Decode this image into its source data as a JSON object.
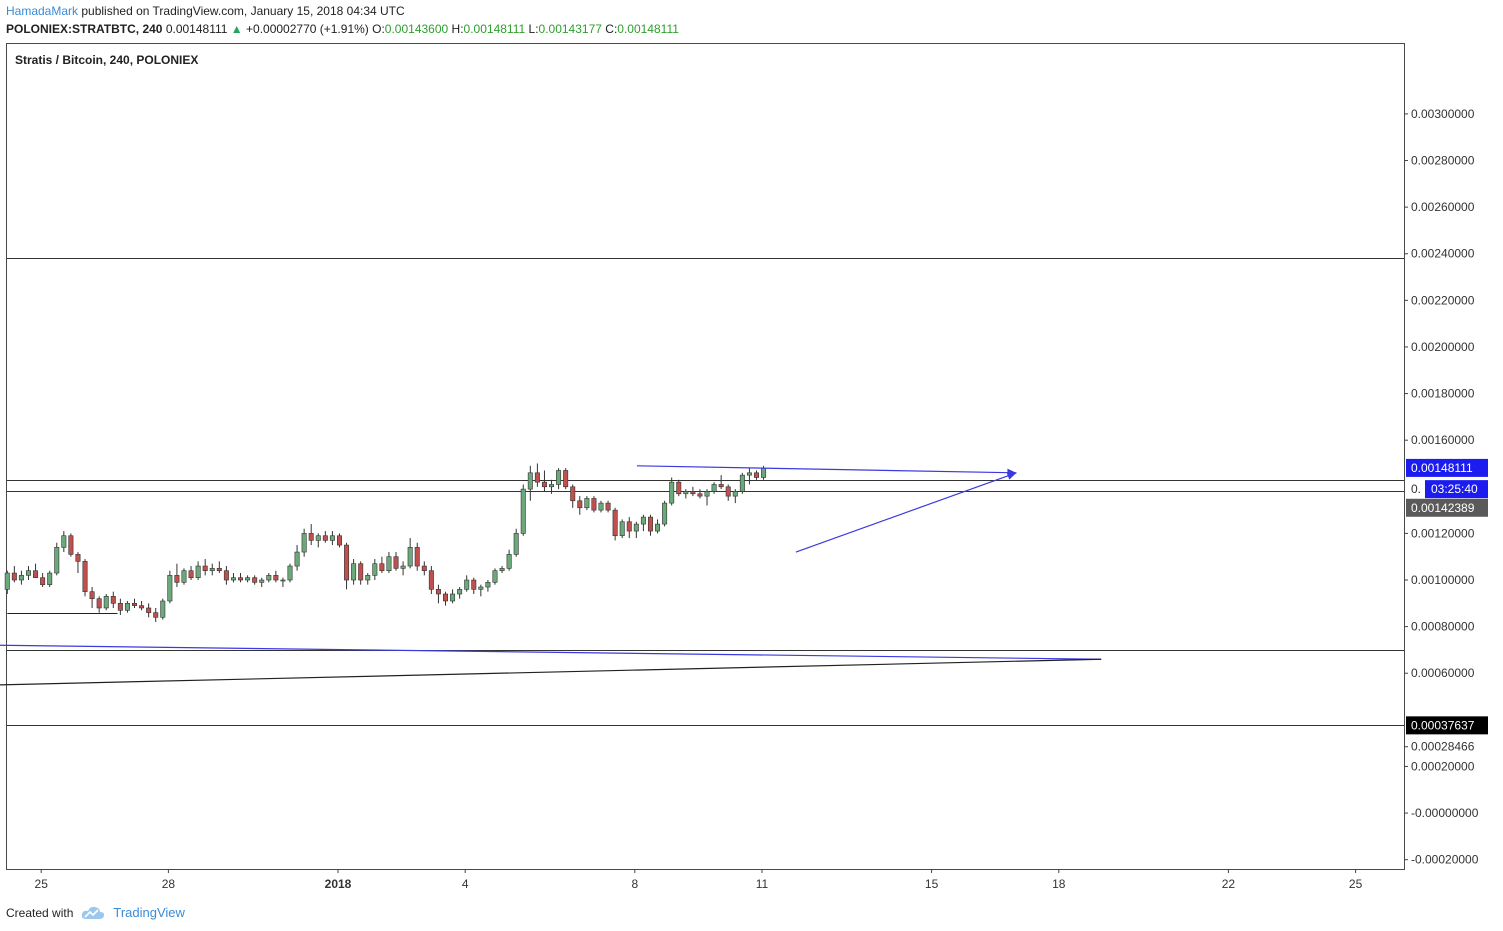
{
  "header": {
    "publisher": "HamadaMark",
    "published_text": " published on TradingView.com, January 15, 2018 04:34 UTC",
    "symbol": "POLONIEX:STRATBTC, 240",
    "last": "0.00148111",
    "change_arrow": "▲",
    "change": "+0.00002770 (+1.91%)",
    "o_label": "O:",
    "o": "0.00143600",
    "h_label": "H:",
    "h": "0.00148111",
    "l_label": "L:",
    "l": "0.00143177",
    "c_label": "C:",
    "c": "0.00148111"
  },
  "footer": {
    "created_with": "Created with",
    "brand": "TradingView",
    "logo_icon": "tradingview-cloud-icon"
  },
  "colors": {
    "up": "#6aa97a",
    "down": "#c0504d",
    "trend": "#3a3ae0",
    "price_badge": "#1c1cf0",
    "dark_badge": "#5a5a5a",
    "black_badge": "#000000"
  },
  "chart_data": {
    "type": "candlestick",
    "title": "Stratis / Bitcoin, 240, POLONIEX",
    "ylim": [
      -0.00024,
      0.0033
    ],
    "y_ticks": [
      "0.00300000",
      "0.00280000",
      "0.00260000",
      "0.00240000",
      "0.00220000",
      "0.00200000",
      "0.00180000",
      "0.00160000",
      "0.00120000",
      "0.00100000",
      "0.00080000",
      "0.00060000",
      "0.00028466",
      "0.00020000",
      "-0.00000000",
      "-0.00020000"
    ],
    "y_tick_values": [
      0.003,
      0.0028,
      0.0026,
      0.0024,
      0.0022,
      0.002,
      0.0018,
      0.0016,
      0.0012,
      0.001,
      0.0008,
      0.0006,
      0.00028466,
      0.0002,
      0.0,
      -0.0002
    ],
    "x_ticks": [
      {
        "label": "25",
        "day": -7,
        "bold": false
      },
      {
        "label": "28",
        "day": -4,
        "bold": false
      },
      {
        "label": "2018",
        "day": 0,
        "bold": true
      },
      {
        "label": "4",
        "day": 3,
        "bold": false
      },
      {
        "label": "8",
        "day": 7,
        "bold": false
      },
      {
        "label": "11",
        "day": 10,
        "bold": false
      },
      {
        "label": "15",
        "day": 14,
        "bold": false
      },
      {
        "label": "18",
        "day": 17,
        "bold": false
      },
      {
        "label": "22",
        "day": 21,
        "bold": false
      },
      {
        "label": "25",
        "day": 24,
        "bold": false
      }
    ],
    "price_badges": [
      {
        "label": "0.00148111",
        "value": 0.00148111,
        "style": "blue"
      },
      {
        "label": "03:25:40",
        "value": 0.00139,
        "style": "blue-small",
        "prefix": "0."
      },
      {
        "label": "0.00142389",
        "value": 0.00131,
        "style": "gray"
      },
      {
        "label": "0.00037637",
        "value": 0.00037637,
        "style": "black"
      }
    ],
    "horizontal_lines": [
      0.00238,
      0.00143,
      0.00138,
      0.0007,
      0.00038
    ],
    "short_lines": [
      {
        "value": 0.00086,
        "day_from": -7.8,
        "day_to": -5.2
      }
    ],
    "trend_lines": [
      {
        "from": [
          7.05,
          0.00149
        ],
        "to": [
          13.95,
          0.00146
        ],
        "color": "trend",
        "arrow": true,
        "extend_to": [
          16.0,
          0.00146
        ]
      },
      {
        "from": [
          10.8,
          0.00112
        ],
        "to": [
          16.0,
          0.00146
        ],
        "color": "trend",
        "arrow": true
      },
      {
        "from": [
          -8.0,
          0.00072
        ],
        "to": [
          18.0,
          0.00066
        ],
        "color": "trend",
        "arrow": false
      },
      {
        "from": [
          -8.0,
          0.00055
        ],
        "to": [
          18.0,
          0.00066
        ],
        "color": "black",
        "arrow": false
      }
    ],
    "candles_start_day": -7.8,
    "candles_step_days": 0.1667,
    "ohlc": [
      [
        0.00096,
        0.00104,
        0.00094,
        0.00103
      ],
      [
        0.00103,
        0.00106,
        0.00099,
        0.001
      ],
      [
        0.001,
        0.00104,
        0.00098,
        0.00102
      ],
      [
        0.00102,
        0.00106,
        0.001,
        0.00104
      ],
      [
        0.00104,
        0.00107,
        0.00101,
        0.00101
      ],
      [
        0.00101,
        0.00103,
        0.00097,
        0.00098
      ],
      [
        0.00098,
        0.00104,
        0.00097,
        0.00103
      ],
      [
        0.00103,
        0.00116,
        0.00102,
        0.00114
      ],
      [
        0.00114,
        0.00121,
        0.00112,
        0.00119
      ],
      [
        0.00119,
        0.0012,
        0.0011,
        0.00111
      ],
      [
        0.00111,
        0.00112,
        0.00103,
        0.00108
      ],
      [
        0.00108,
        0.00109,
        0.00093,
        0.00095
      ],
      [
        0.00095,
        0.00097,
        0.00088,
        0.00092
      ],
      [
        0.00092,
        0.00093,
        0.00086,
        0.00088
      ],
      [
        0.00088,
        0.00094,
        0.00087,
        0.00093
      ],
      [
        0.00093,
        0.00095,
        0.00088,
        0.0009
      ],
      [
        0.0009,
        0.00092,
        0.00085,
        0.00087
      ],
      [
        0.00087,
        0.00091,
        0.00086,
        0.0009
      ],
      [
        0.0009,
        0.00092,
        0.00088,
        0.00089
      ],
      [
        0.00089,
        0.00091,
        0.00087,
        0.00088
      ],
      [
        0.00088,
        0.0009,
        0.00084,
        0.00086
      ],
      [
        0.00086,
        0.00088,
        0.00082,
        0.00084
      ],
      [
        0.00084,
        0.00092,
        0.00083,
        0.00091
      ],
      [
        0.00091,
        0.00104,
        0.0009,
        0.00102
      ],
      [
        0.00102,
        0.00107,
        0.00097,
        0.00099
      ],
      [
        0.00099,
        0.00105,
        0.00098,
        0.00104
      ],
      [
        0.00104,
        0.00106,
        0.001,
        0.00101
      ],
      [
        0.00101,
        0.00108,
        0.001,
        0.00106
      ],
      [
        0.00106,
        0.00109,
        0.00102,
        0.00104
      ],
      [
        0.00104,
        0.00107,
        0.00102,
        0.00105
      ],
      [
        0.00105,
        0.00108,
        0.00103,
        0.00104
      ],
      [
        0.00104,
        0.00106,
        0.00098,
        0.001
      ],
      [
        0.001,
        0.00103,
        0.00099,
        0.00101
      ],
      [
        0.00101,
        0.00103,
        0.00099,
        0.001
      ],
      [
        0.001,
        0.00102,
        0.00099,
        0.00101
      ],
      [
        0.00101,
        0.00102,
        0.00098,
        0.00099
      ],
      [
        0.00099,
        0.00101,
        0.00097,
        0.001
      ],
      [
        0.001,
        0.00103,
        0.00099,
        0.00102
      ],
      [
        0.00102,
        0.00104,
        0.00099,
        0.001
      ],
      [
        0.001,
        0.00101,
        0.00097,
        0.001
      ],
      [
        0.001,
        0.00107,
        0.00099,
        0.00106
      ],
      [
        0.00106,
        0.00115,
        0.00104,
        0.00112
      ],
      [
        0.00112,
        0.00122,
        0.0011,
        0.0012
      ],
      [
        0.0012,
        0.00124,
        0.00115,
        0.00117
      ],
      [
        0.00117,
        0.0012,
        0.00114,
        0.00119
      ],
      [
        0.00119,
        0.00121,
        0.00116,
        0.00117
      ],
      [
        0.00117,
        0.00121,
        0.00115,
        0.00119
      ],
      [
        0.00119,
        0.0012,
        0.00114,
        0.00115
      ],
      [
        0.00115,
        0.00116,
        0.00096,
        0.001
      ],
      [
        0.001,
        0.00109,
        0.00098,
        0.00107
      ],
      [
        0.00107,
        0.00108,
        0.00098,
        0.001
      ],
      [
        0.001,
        0.00103,
        0.00098,
        0.00102
      ],
      [
        0.00102,
        0.00109,
        0.001,
        0.00107
      ],
      [
        0.00107,
        0.0011,
        0.00103,
        0.00104
      ],
      [
        0.00104,
        0.00112,
        0.00103,
        0.0011
      ],
      [
        0.0011,
        0.00112,
        0.00104,
        0.00105
      ],
      [
        0.00105,
        0.00108,
        0.00102,
        0.00106
      ],
      [
        0.00106,
        0.00118,
        0.00105,
        0.00114
      ],
      [
        0.00114,
        0.00116,
        0.00104,
        0.00106
      ],
      [
        0.00106,
        0.00108,
        0.00102,
        0.00104
      ],
      [
        0.00104,
        0.00106,
        0.00094,
        0.00096
      ],
      [
        0.00096,
        0.00098,
        0.0009,
        0.00094
      ],
      [
        0.00094,
        0.00095,
        0.00089,
        0.00091
      ],
      [
        0.00091,
        0.00096,
        0.0009,
        0.00094
      ],
      [
        0.00094,
        0.00097,
        0.00092,
        0.00096
      ],
      [
        0.00096,
        0.00102,
        0.00095,
        0.001
      ],
      [
        0.001,
        0.00101,
        0.00094,
        0.00096
      ],
      [
        0.00096,
        0.00098,
        0.00093,
        0.00097
      ],
      [
        0.00097,
        0.001,
        0.00095,
        0.00099
      ],
      [
        0.00099,
        0.00105,
        0.00098,
        0.00104
      ],
      [
        0.00104,
        0.00106,
        0.00103,
        0.00105
      ],
      [
        0.00105,
        0.00113,
        0.00104,
        0.00111
      ],
      [
        0.00111,
        0.00122,
        0.0011,
        0.0012
      ],
      [
        0.0012,
        0.00141,
        0.00119,
        0.00139
      ],
      [
        0.00139,
        0.00149,
        0.00134,
        0.00146
      ],
      [
        0.00146,
        0.0015,
        0.0014,
        0.00142
      ],
      [
        0.00142,
        0.00147,
        0.00138,
        0.0014
      ],
      [
        0.0014,
        0.00143,
        0.00137,
        0.00141
      ],
      [
        0.00141,
        0.00148,
        0.00139,
        0.00147
      ],
      [
        0.00147,
        0.00148,
        0.00139,
        0.0014
      ],
      [
        0.0014,
        0.00141,
        0.00131,
        0.00134
      ],
      [
        0.00134,
        0.00136,
        0.00128,
        0.00131
      ],
      [
        0.00131,
        0.00136,
        0.0013,
        0.00135
      ],
      [
        0.00135,
        0.00136,
        0.00129,
        0.0013
      ],
      [
        0.0013,
        0.00134,
        0.00129,
        0.00133
      ],
      [
        0.00133,
        0.00134,
        0.00129,
        0.0013
      ],
      [
        0.0013,
        0.00131,
        0.00117,
        0.00119
      ],
      [
        0.00119,
        0.00126,
        0.00118,
        0.00125
      ],
      [
        0.00125,
        0.00127,
        0.00118,
        0.00121
      ],
      [
        0.00121,
        0.00125,
        0.00118,
        0.00124
      ],
      [
        0.00124,
        0.00128,
        0.00121,
        0.00127
      ],
      [
        0.00127,
        0.00128,
        0.00119,
        0.00121
      ],
      [
        0.00121,
        0.00126,
        0.0012,
        0.00124
      ],
      [
        0.00124,
        0.00134,
        0.00123,
        0.00133
      ],
      [
        0.00133,
        0.00144,
        0.00132,
        0.00142
      ],
      [
        0.00142,
        0.00143,
        0.00136,
        0.00137
      ],
      [
        0.00137,
        0.00139,
        0.00135,
        0.00138
      ],
      [
        0.00138,
        0.0014,
        0.00136,
        0.00137
      ],
      [
        0.00137,
        0.00139,
        0.00135,
        0.00136
      ],
      [
        0.00136,
        0.00139,
        0.00132,
        0.00138
      ],
      [
        0.00138,
        0.00142,
        0.00137,
        0.00141
      ],
      [
        0.00141,
        0.00145,
        0.00139,
        0.0014
      ],
      [
        0.0014,
        0.00141,
        0.00134,
        0.00136
      ],
      [
        0.00136,
        0.00139,
        0.00133,
        0.00138
      ],
      [
        0.00138,
        0.00146,
        0.00137,
        0.00145
      ],
      [
        0.00145,
        0.00148,
        0.00141,
        0.00146
      ],
      [
        0.00146,
        0.00147,
        0.00143,
        0.00144
      ],
      [
        0.00144,
        0.00149,
        0.00143,
        0.00148
      ]
    ]
  }
}
